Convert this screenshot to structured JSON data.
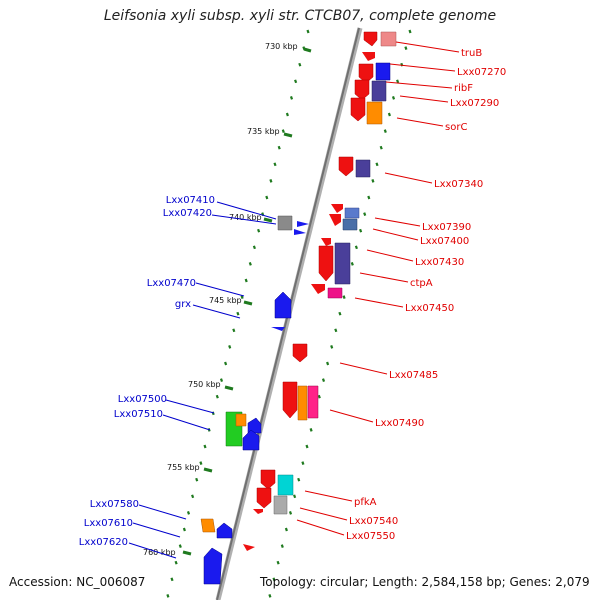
{
  "title": "Leifsonia xyli subsp. xyli str. CTCB07, complete genome",
  "footer": {
    "accession": "Accession: NC_006087",
    "summary": "Topology: circular; Length: 2,584,158 bp; Genes: 2,079"
  },
  "colors": {
    "backbone": "#8a8a8a",
    "ticks": "#1f7a1f",
    "forward_label": "#e00000",
    "reverse_label": "#0000cc"
  },
  "ticks": [
    "730 kbp",
    "735 kbp",
    "740 kbp",
    "745 kbp",
    "750 kbp",
    "755 kbp",
    "760 kbp"
  ],
  "forward_labels": [
    "truB",
    "Lxx07270",
    "ribF",
    "Lxx07290",
    "sorC",
    "Lxx07340",
    "Lxx07390",
    "Lxx07400",
    "Lxx07430",
    "ctpA",
    "Lxx07450",
    "Lxx07485",
    "Lxx07490",
    "pfkA",
    "Lxx07540",
    "Lxx07550"
  ],
  "reverse_labels": [
    "Lxx07410",
    "Lxx07420",
    "Lxx07470",
    "grx",
    "Lxx07500",
    "Lxx07510",
    "Lxx07580",
    "Lxx07610",
    "Lxx07620"
  ]
}
